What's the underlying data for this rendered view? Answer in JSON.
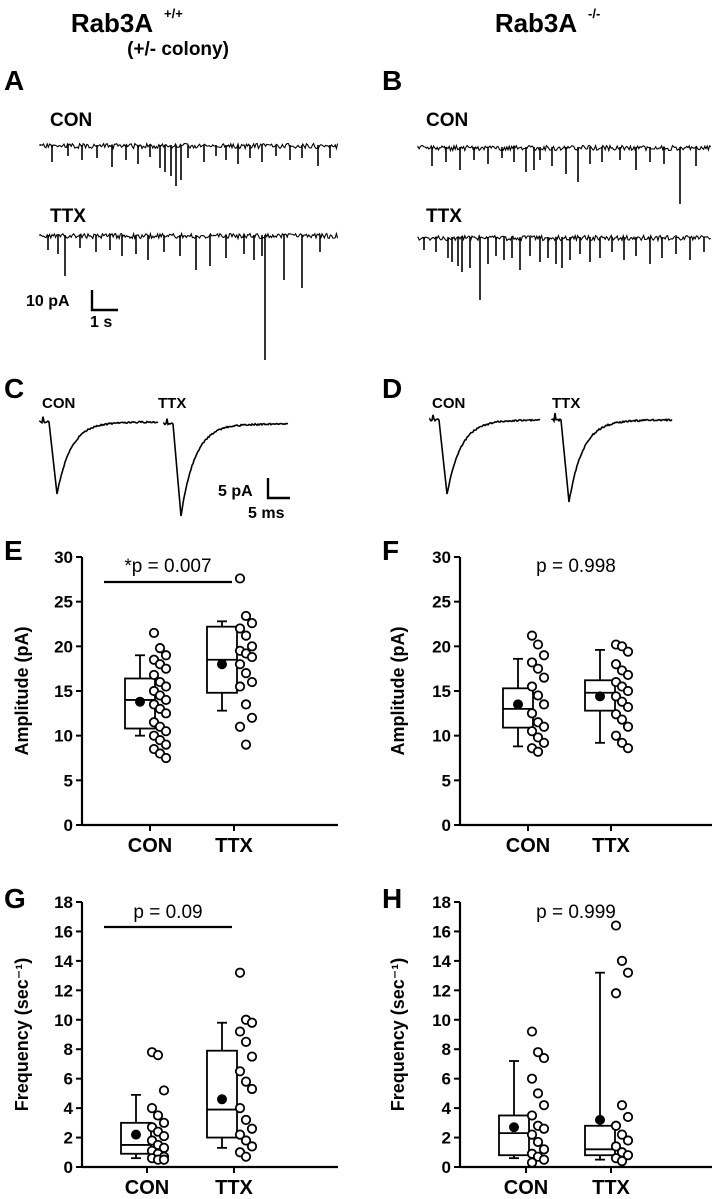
{
  "headers": {
    "left": {
      "main": "Rab3A",
      "sup": "+/+",
      "sub": "(+/- colony)"
    },
    "right": {
      "main": "Rab3A",
      "sup": "-/-"
    }
  },
  "panels": {
    "A": "A",
    "B": "B",
    "C": "C",
    "D": "D",
    "E": "E",
    "F": "F",
    "G": "G",
    "H": "H"
  },
  "traces": {
    "con_label": "CON",
    "ttx_label": "TTX",
    "scale_amp": "10 pA",
    "scale_time": "1 s",
    "avg_scale_amp": "5 pA",
    "avg_scale_time": "5 ms"
  },
  "colors": {
    "ink": "#000000",
    "background": "#ffffff"
  },
  "chart_data": [
    {
      "panel": "E",
      "type": "box",
      "title": "*p = 0.007",
      "significance_bar": true,
      "ylabel": "Amplitude (pA)",
      "ylim": [
        0,
        30
      ],
      "yticks": [
        0,
        5,
        10,
        15,
        20,
        25,
        30
      ],
      "groups": [
        {
          "name": "CON",
          "min": 10.0,
          "q1": 10.8,
          "median": 14.0,
          "q3": 16.4,
          "max": 19.0,
          "mean": 13.8,
          "points": [
            21.5,
            19.8,
            19.0,
            18.5,
            18.0,
            17.5,
            16.8,
            16.0,
            15.5,
            15.0,
            14.5,
            14.0,
            13.5,
            13.0,
            12.5,
            11.5,
            11.0,
            10.5,
            10.0,
            9.5,
            9.0,
            8.5,
            8.0,
            7.5
          ]
        },
        {
          "name": "TTX",
          "min": 12.8,
          "q1": 14.8,
          "median": 18.5,
          "q3": 22.2,
          "max": 22.8,
          "mean": 18.0,
          "points": [
            27.6,
            23.4,
            22.6,
            22.0,
            21.2,
            20.0,
            19.5,
            19.2,
            18.8,
            18.0,
            17.0,
            16.0,
            15.5,
            13.5,
            12.0,
            11.0,
            9.0
          ]
        }
      ]
    },
    {
      "panel": "F",
      "type": "box",
      "title": "p = 0.998",
      "significance_bar": false,
      "ylabel": "Amplitude (pA)",
      "ylim": [
        0,
        30
      ],
      "yticks": [
        0,
        5,
        10,
        15,
        20,
        25,
        30
      ],
      "groups": [
        {
          "name": "CON",
          "min": 8.8,
          "q1": 10.9,
          "median": 13.0,
          "q3": 15.3,
          "max": 18.6,
          "mean": 13.5,
          "points": [
            21.2,
            20.2,
            19.0,
            18.2,
            17.5,
            16.5,
            15.5,
            14.5,
            13.5,
            12.5,
            11.5,
            11.0,
            10.5,
            9.8,
            9.2,
            8.6,
            8.2
          ]
        },
        {
          "name": "TTX",
          "min": 9.2,
          "q1": 12.8,
          "median": 14.8,
          "q3": 16.2,
          "max": 19.6,
          "mean": 14.4,
          "points": [
            20.2,
            20.0,
            19.4,
            18.0,
            17.3,
            16.8,
            16.0,
            15.5,
            15.0,
            14.4,
            13.8,
            13.2,
            12.4,
            11.8,
            11.0,
            10.0,
            9.2,
            8.6
          ]
        }
      ]
    },
    {
      "panel": "G",
      "type": "box",
      "title": "p = 0.09",
      "significance_bar": true,
      "ylabel": "Frequency (sec⁻¹)",
      "ylim": [
        0,
        18
      ],
      "yticks": [
        0,
        2,
        4,
        6,
        8,
        10,
        12,
        14,
        16,
        18
      ],
      "groups": [
        {
          "name": "CON",
          "min": 0.6,
          "q1": 0.9,
          "median": 1.5,
          "q3": 3.0,
          "max": 4.9,
          "mean": 2.2,
          "points": [
            7.8,
            7.6,
            5.2,
            4.0,
            3.5,
            3.0,
            2.7,
            2.4,
            2.1,
            1.8,
            1.5,
            1.3,
            1.1,
            0.9,
            0.7,
            0.6,
            0.5,
            0.5
          ]
        },
        {
          "name": "TTX",
          "min": 1.3,
          "q1": 2.0,
          "median": 3.9,
          "q3": 7.9,
          "max": 9.8,
          "mean": 4.6,
          "points": [
            13.2,
            10.0,
            9.8,
            9.2,
            8.5,
            7.5,
            6.5,
            5.8,
            5.3,
            4.0,
            3.2,
            2.6,
            2.2,
            1.8,
            1.4,
            1.0,
            0.7
          ]
        }
      ]
    },
    {
      "panel": "H",
      "type": "box",
      "title": "p = 0.999",
      "significance_bar": false,
      "ylabel": "Frequency (sec⁻¹)",
      "ylim": [
        0,
        18
      ],
      "yticks": [
        0,
        2,
        4,
        6,
        8,
        10,
        12,
        14,
        16,
        18
      ],
      "groups": [
        {
          "name": "CON",
          "min": 0.6,
          "q1": 0.8,
          "median": 2.3,
          "q3": 3.5,
          "max": 7.2,
          "mean": 2.7,
          "points": [
            9.2,
            7.8,
            7.4,
            6.0,
            5.0,
            4.2,
            3.5,
            2.8,
            2.6,
            2.2,
            1.7,
            1.2,
            0.9,
            0.7,
            0.5,
            0.3
          ]
        },
        {
          "name": "TTX",
          "min": 0.5,
          "q1": 0.8,
          "median": 1.2,
          "q3": 2.8,
          "max": 13.2,
          "mean": 3.2,
          "points": [
            16.4,
            14.0,
            13.2,
            11.8,
            4.2,
            3.4,
            2.8,
            2.2,
            1.8,
            1.4,
            1.0,
            0.8,
            0.6,
            0.4
          ]
        }
      ]
    }
  ]
}
